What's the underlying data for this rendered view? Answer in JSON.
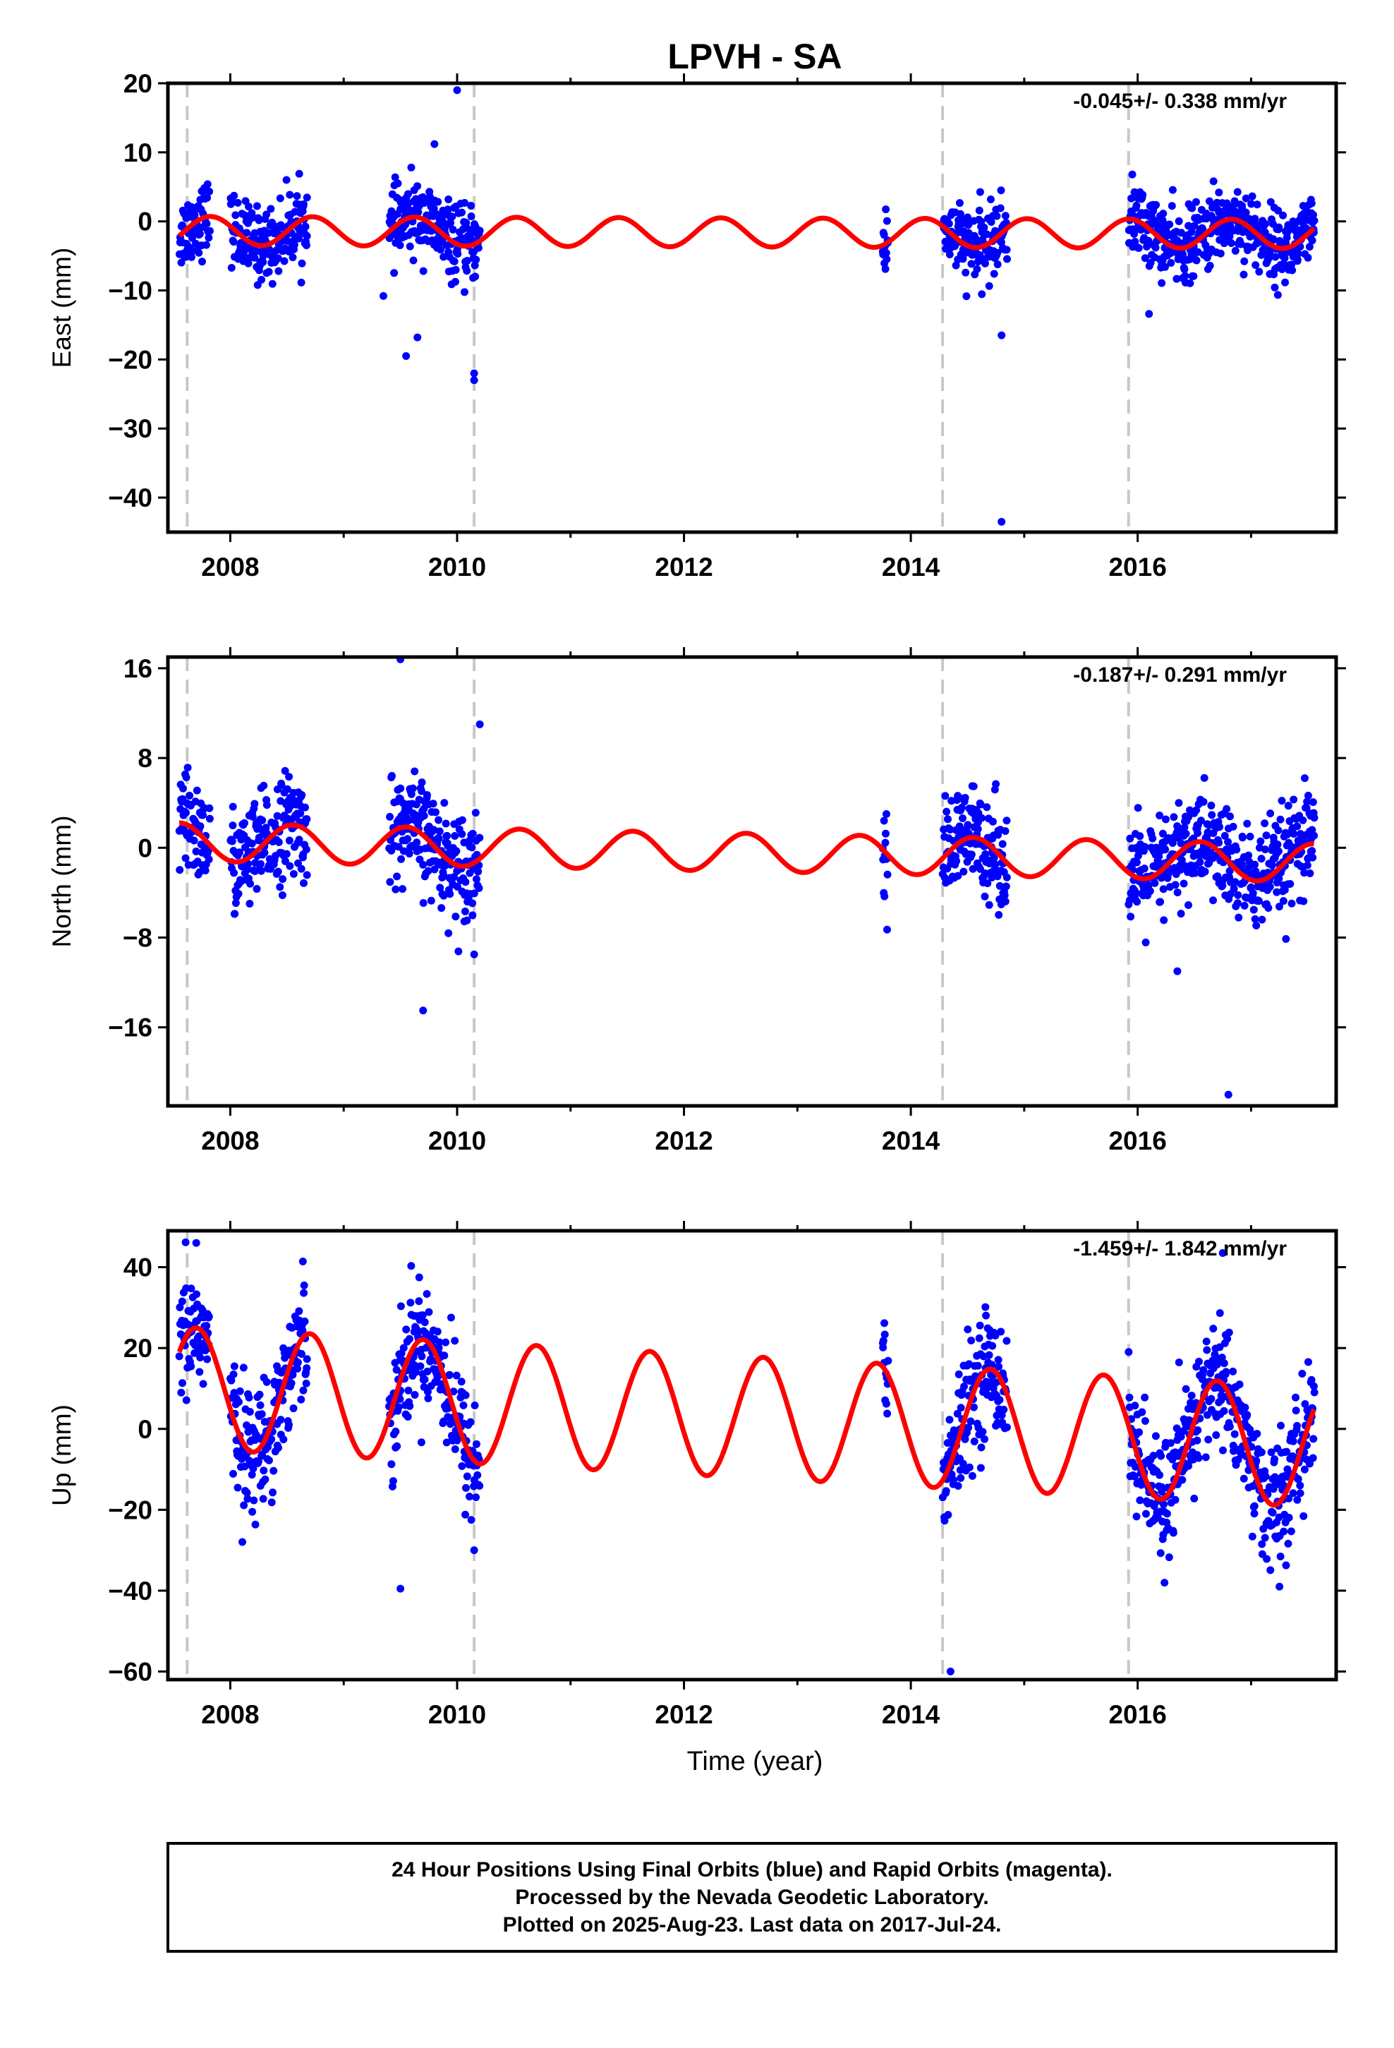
{
  "title": "LPVH - SA",
  "x_axis_label": "Time (year)",
  "footer": {
    "line1": "24 Hour Positions Using Final Orbits (blue) and Rapid Orbits (magenta).",
    "line2": "Processed by the Nevada Geodetic Laboratory.",
    "line3": "Plotted on 2025-Aug-23. Last data on 2017-Jul-24."
  },
  "colors": {
    "data_points": "#0000ff",
    "model_curve": "#ff0000",
    "event_lines": "#c8c8c8",
    "frame": "#000000"
  },
  "chart_data": [
    {
      "type": "scatter",
      "component": "east",
      "ylabel": "East (mm)",
      "rate_text": "-0.045+/- 0.338 mm/yr",
      "xlim": [
        2007.45,
        2017.75
      ],
      "ylim": [
        -45,
        20
      ],
      "x_ticks": [
        2008,
        2010,
        2012,
        2014,
        2016
      ],
      "y_ticks": [
        20,
        10,
        0,
        -10,
        -20,
        -30,
        -40
      ],
      "event_lines": [
        2007.62,
        2010.15,
        2014.28,
        2015.92
      ],
      "data_periods": [
        [
          2007.55,
          2007.82
        ],
        [
          2008.0,
          2008.68
        ],
        [
          2009.4,
          2010.2
        ],
        [
          2013.75,
          2013.8
        ],
        [
          2014.28,
          2014.85
        ],
        [
          2015.92,
          2017.56
        ]
      ],
      "model": {
        "offset": -1.6,
        "rate": -0.045,
        "seasonal_amp": 2.1,
        "period": 0.9,
        "phase": 2007.6
      },
      "scatter_sigma": 2.6,
      "outliers": [
        [
          2009.55,
          -19.5
        ],
        [
          2009.8,
          11.2
        ],
        [
          2010.0,
          19
        ],
        [
          2010.15,
          -22
        ],
        [
          2010.15,
          -23
        ],
        [
          2014.8,
          -16.5
        ],
        [
          2014.8,
          -43.5
        ],
        [
          2009.65,
          -16.8
        ],
        [
          2016.1,
          -13.4
        ],
        [
          2009.35,
          -10.8
        ]
      ]
    },
    {
      "type": "scatter",
      "component": "north",
      "ylabel": "North (mm)",
      "rate_text": "-0.187+/- 0.291 mm/yr",
      "xlim": [
        2007.45,
        2017.75
      ],
      "ylim": [
        -23,
        17
      ],
      "x_ticks": [
        2008,
        2010,
        2012,
        2014,
        2016
      ],
      "y_ticks": [
        16,
        8,
        0,
        -8,
        -16
      ],
      "event_lines": [
        2007.62,
        2010.15,
        2014.28,
        2015.92
      ],
      "data_periods": [
        [
          2007.55,
          2007.82
        ],
        [
          2008.0,
          2008.68
        ],
        [
          2009.4,
          2010.2
        ],
        [
          2013.75,
          2013.8
        ],
        [
          2014.28,
          2014.85
        ],
        [
          2015.92,
          2017.56
        ]
      ],
      "model": {
        "offset": -0.4,
        "rate": -0.187,
        "seasonal_amp": 1.7,
        "period": 1.0,
        "phase": 2007.3
      },
      "scatter_sigma": 2.3,
      "outliers": [
        [
          2009.5,
          16.8
        ],
        [
          2009.7,
          -14.5
        ],
        [
          2016.8,
          -22.0
        ],
        [
          2010.2,
          11.0
        ],
        [
          2010.15,
          -9.5
        ],
        [
          2016.35,
          -11.0
        ]
      ]
    },
    {
      "type": "scatter",
      "component": "up",
      "ylabel": "Up (mm)",
      "rate_text": "-1.459+/- 1.842 mm/yr",
      "xlim": [
        2007.45,
        2017.75
      ],
      "ylim": [
        -62,
        49
      ],
      "x_ticks": [
        2008,
        2010,
        2012,
        2014,
        2016
      ],
      "y_ticks": [
        40,
        20,
        0,
        -20,
        -40,
        -60
      ],
      "event_lines": [
        2007.62,
        2010.15,
        2014.28,
        2015.92
      ],
      "data_periods": [
        [
          2007.55,
          2007.82
        ],
        [
          2008.0,
          2008.68
        ],
        [
          2009.4,
          2010.2
        ],
        [
          2013.75,
          2013.8
        ],
        [
          2014.28,
          2014.85
        ],
        [
          2015.92,
          2017.56
        ]
      ],
      "model": {
        "offset": 3.0,
        "rate": -1.459,
        "seasonal_amp": 15.0,
        "period": 1.0,
        "phase": 2007.45
      },
      "scatter_sigma": 7.5,
      "outliers": [
        [
          2007.7,
          46
        ],
        [
          2009.5,
          -39.5
        ],
        [
          2014.35,
          -60
        ],
        [
          2016.75,
          43.5
        ],
        [
          2017.25,
          -39
        ],
        [
          2010.15,
          -30
        ]
      ]
    }
  ]
}
